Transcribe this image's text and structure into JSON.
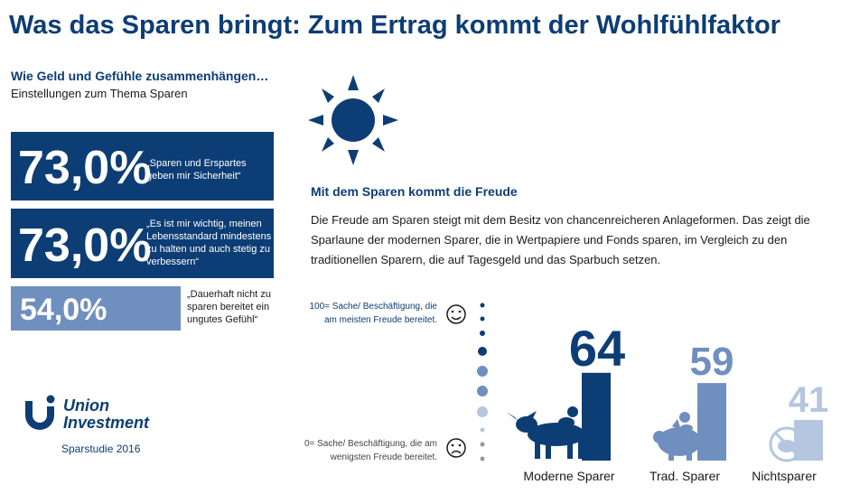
{
  "header": {
    "title": "Was das Sparen bringt: Zum Ertrag kommt der Wohlfühlfaktor"
  },
  "left": {
    "subtitle": "Wie Geld und Gefühle zusammenhängen…",
    "subtitle2": "Einstellungen zum Thema Sparen",
    "stats": [
      {
        "value": "73,0%",
        "quote": "„Sparen und Erspartes geben mir Sicherheit“",
        "color": "#0d3d75"
      },
      {
        "value": "73,0%",
        "quote": "„Es ist mir wichtig, meinen Lebensstandard mindestens zu halten und auch stetig zu verbessern“",
        "color": "#0d3d75"
      },
      {
        "value": "54,0%",
        "quote": "„Dauerhaft nicht zu sparen bereitet ein ungutes Gefühl“",
        "color": "#6f8fbf"
      }
    ],
    "logo": {
      "line1": "Union",
      "line2": "Investment"
    },
    "study": "Sparstudie 2016"
  },
  "right": {
    "heading": "Mit dem Sparen kommt die Freude",
    "paragraph": "Die Freude am Sparen steigt mit dem Besitz von chancenreicheren Anlageformen. Das zeigt die Sparlaune der modernen Sparer, die in Wertpapiere und Fonds sparen, im Vergleich zu den traditionellen Sparern, die auf Tagesgeld und das Sparbuch setzen.",
    "scale_top": "100= Sache/ Beschäftigung, die am meisten Freude bereitet.",
    "scale_bottom": "0= Sache/ Beschäftigung, die am wenigsten Freude bereitet."
  },
  "chart_data": {
    "type": "bar",
    "categories": [
      "Moderne Sparer",
      "Trad. Sparer",
      "Nichtsparer"
    ],
    "values": [
      64,
      59,
      41
    ],
    "ylim": [
      0,
      100
    ],
    "colors": [
      "#0d3d75",
      "#6f8fbf",
      "#b4c6e0"
    ]
  },
  "icons": [
    "sun-icon",
    "smiley-happy-icon",
    "smiley-sad-icon",
    "bull-icon",
    "piggy-bank-icon",
    "no-piggy-bank-icon"
  ]
}
